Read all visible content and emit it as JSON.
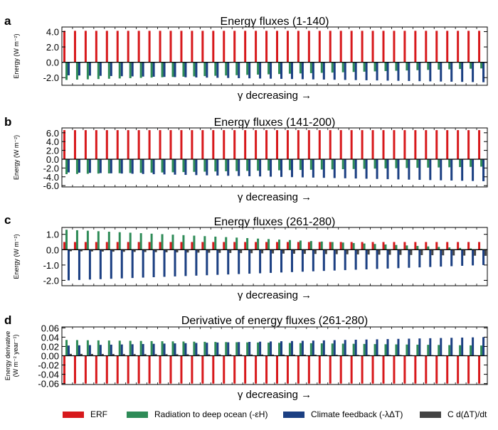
{
  "colors": {
    "erf": "#d7191c",
    "deep_ocean": "#2e8b57",
    "climate_feedback": "#1b3f82",
    "storage": "#444444"
  },
  "legend": [
    {
      "label": "ERF",
      "color": "#d7191c"
    },
    {
      "label": "Radiation to deep ocean (-εH)",
      "color": "#2e8b57"
    },
    {
      "label": "Climate feedback (-λΔT)",
      "color": "#1b3f82"
    },
    {
      "label": "C d(ΔT)/dt",
      "color": "#444444"
    }
  ],
  "chart_data": [
    {
      "type": "bar",
      "panel_letter": "a",
      "title": "Energy fluxes (1-140)",
      "xlabel": "γ decreasing →",
      "ylabel": "Energy (W m⁻²)",
      "ylim": [
        -3.0,
        4.6
      ],
      "yticks": [
        4.0,
        2.0,
        0.0,
        -2.0
      ],
      "ytick_labels": [
        "4.0",
        "2.0",
        "0.0",
        "-2.0"
      ],
      "n_groups": 40,
      "erf": 4.1,
      "deep_ocean": {
        "start": -2.3,
        "end": -0.8
      },
      "climate_feedback": {
        "start": -1.7,
        "end": -2.6
      },
      "storage": {
        "start": -0.05,
        "end": -0.05
      }
    },
    {
      "type": "bar",
      "panel_letter": "b",
      "title": "Energy fluxes (141-200)",
      "xlabel": "γ decreasing →",
      "ylabel": "Energy (W m⁻²)",
      "ylim": [
        -6.3,
        7.1
      ],
      "yticks": [
        6.0,
        4.0,
        2.0,
        0.0,
        -2.0,
        -4.0,
        -6.0
      ],
      "ytick_labels": [
        "6.0",
        "4.0",
        "2.0",
        "0.0",
        "-2.0",
        "-4.0",
        "-6.0"
      ],
      "n_groups": 40,
      "erf": 6.6,
      "deep_ocean": {
        "start": -3.4,
        "end": -1.7
      },
      "climate_feedback": {
        "start": -3.0,
        "end": -5.0
      },
      "storage": {
        "start": -0.1,
        "end": -0.1
      }
    },
    {
      "type": "bar",
      "panel_letter": "c",
      "title": "Energy fluxes (261-280)",
      "xlabel": "γ decreasing →",
      "ylabel": "Energy (W m⁻²)",
      "ylim": [
        -2.35,
        1.45
      ],
      "yticks": [
        1.0,
        0.0,
        -1.0,
        -2.0
      ],
      "ytick_labels": [
        "1.0",
        "0.0",
        "-1.0",
        "-2.0"
      ],
      "n_groups": 40,
      "erf": {
        "start": 0.5,
        "end": 0.5
      },
      "deep_ocean": {
        "start": 1.3,
        "end": 0.05
      },
      "climate_feedback": {
        "start": -2.0,
        "end": -1.0
      },
      "storage": {
        "start": -0.1,
        "end": -0.4
      }
    },
    {
      "type": "bar",
      "panel_letter": "d",
      "title": "Derivative of energy fluxes (261-280)",
      "xlabel": "γ decreasing →",
      "ylabel_line1": "Energy derivative",
      "ylabel_line2": "(W m⁻² year⁻¹)",
      "ylim": [
        -0.062,
        0.062
      ],
      "yticks": [
        0.06,
        0.04,
        0.02,
        0.0,
        -0.02,
        -0.04,
        -0.06
      ],
      "ytick_labels": [
        "0.06",
        "0.04",
        "0.02",
        "0.00",
        "-0.02",
        "-0.04",
        "-0.06"
      ],
      "n_groups": 40,
      "erf": -0.06,
      "deep_ocean": {
        "start": 0.034,
        "end": 0.022
      },
      "climate_feedback": {
        "start": 0.022,
        "end": 0.04
      },
      "storage": {
        "start": 0.004,
        "end": 0.001
      }
    }
  ]
}
